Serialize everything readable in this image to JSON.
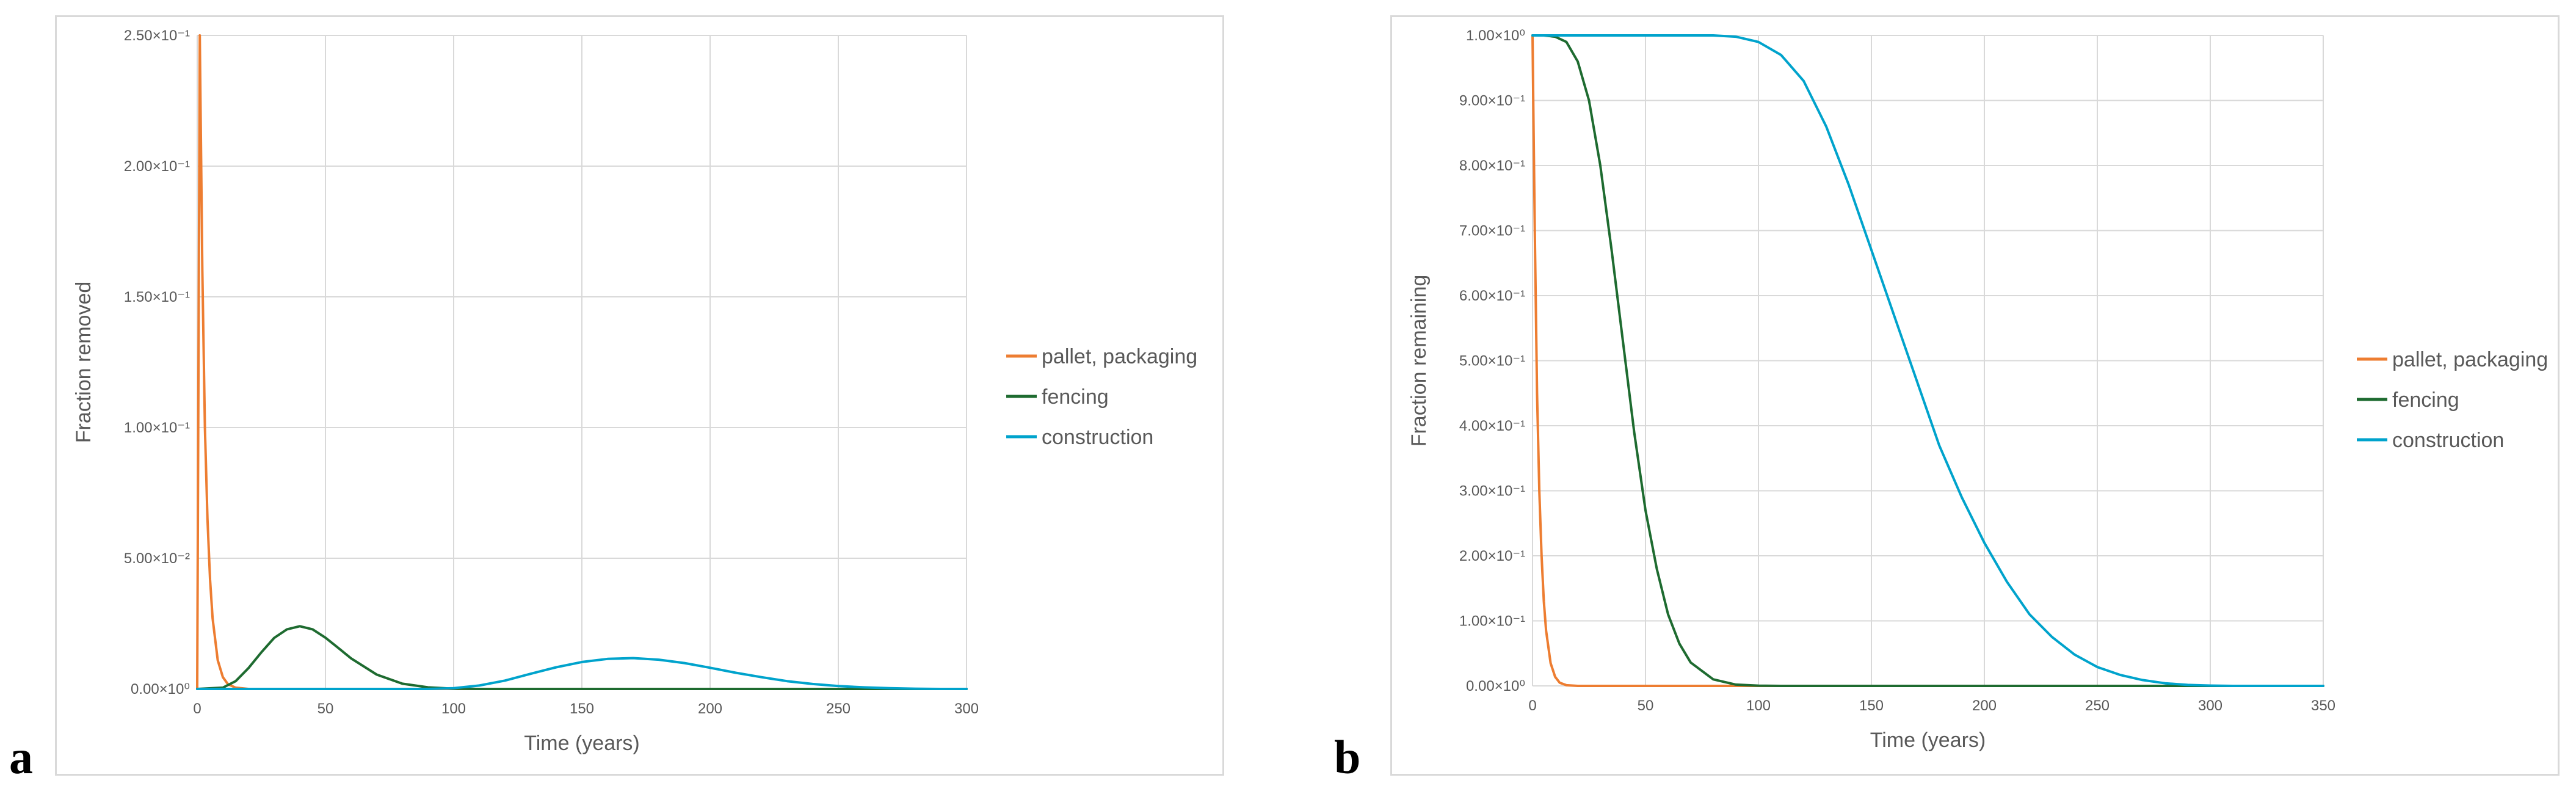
{
  "panels": {
    "a": {
      "letter": "a"
    },
    "b": {
      "letter": "b"
    }
  },
  "chart_data": [
    {
      "type": "line",
      "panel": "a",
      "xlabel": "Time (years)",
      "ylabel": "Fraction removed",
      "xlim": [
        0,
        300
      ],
      "ylim": [
        0,
        0.25
      ],
      "x_ticks": [
        "0",
        "50",
        "100",
        "150",
        "200",
        "250",
        "300"
      ],
      "y_ticks": [
        "0.00×10⁰",
        "5.00×10⁻²",
        "1.00×10⁻¹",
        "1.50×10⁻¹",
        "2.00×10⁻¹",
        "2.50×10⁻¹"
      ],
      "grid": true,
      "legend_position": "right",
      "series": [
        {
          "name": "pallet, packaging",
          "color": "#ED7D31",
          "points": [
            [
              0,
              0
            ],
            [
              1,
              0.25
            ],
            [
              2,
              0.16
            ],
            [
              3,
              0.1
            ],
            [
              4,
              0.065
            ],
            [
              5,
              0.042
            ],
            [
              6,
              0.027
            ],
            [
              8,
              0.011
            ],
            [
              10,
              0.0045
            ],
            [
              12,
              0.0018
            ],
            [
              15,
              0.0005
            ],
            [
              20,
              0
            ],
            [
              300,
              0
            ]
          ]
        },
        {
          "name": "fencing",
          "color": "#1E6B30",
          "points": [
            [
              0,
              0
            ],
            [
              10,
              0.0005
            ],
            [
              15,
              0.003
            ],
            [
              20,
              0.008
            ],
            [
              25,
              0.014
            ],
            [
              30,
              0.0195
            ],
            [
              35,
              0.0228
            ],
            [
              40,
              0.024
            ],
            [
              45,
              0.0228
            ],
            [
              50,
              0.0196
            ],
            [
              55,
              0.0157
            ],
            [
              60,
              0.0117
            ],
            [
              70,
              0.0055
            ],
            [
              80,
              0.002
            ],
            [
              90,
              0.0006
            ],
            [
              100,
              0.0001
            ],
            [
              110,
              0
            ],
            [
              300,
              0
            ]
          ]
        },
        {
          "name": "construction",
          "color": "#00A3CC",
          "points": [
            [
              0,
              0
            ],
            [
              90,
              0
            ],
            [
              100,
              0.0003
            ],
            [
              110,
              0.0013
            ],
            [
              120,
              0.0032
            ],
            [
              130,
              0.0058
            ],
            [
              140,
              0.0083
            ],
            [
              150,
              0.0103
            ],
            [
              160,
              0.0115
            ],
            [
              170,
              0.0118
            ],
            [
              180,
              0.0112
            ],
            [
              190,
              0.0099
            ],
            [
              200,
              0.0081
            ],
            [
              210,
              0.0062
            ],
            [
              220,
              0.0045
            ],
            [
              230,
              0.003
            ],
            [
              240,
              0.0019
            ],
            [
              250,
              0.0011
            ],
            [
              260,
              0.0006
            ],
            [
              270,
              0.0003
            ],
            [
              280,
              0.0001
            ],
            [
              290,
              0
            ],
            [
              300,
              0
            ]
          ]
        }
      ]
    },
    {
      "type": "line",
      "panel": "b",
      "xlabel": "Time (years)",
      "ylabel": "Fraction remaining",
      "xlim": [
        0,
        350
      ],
      "ylim": [
        0,
        1
      ],
      "x_ticks": [
        "0",
        "50",
        "100",
        "150",
        "200",
        "250",
        "300",
        "350"
      ],
      "y_ticks": [
        "0.00×10⁰",
        "1.00×10⁻¹",
        "2.00×10⁻¹",
        "3.00×10⁻¹",
        "4.00×10⁻¹",
        "5.00×10⁻¹",
        "6.00×10⁻¹",
        "7.00×10⁻¹",
        "8.00×10⁻¹",
        "9.00×10⁻¹",
        "1.00×10⁰"
      ],
      "grid": true,
      "legend_position": "right",
      "series": [
        {
          "name": "pallet, packaging",
          "color": "#ED7D31",
          "points": [
            [
              0,
              1
            ],
            [
              0.5,
              0.85
            ],
            [
              1,
              0.7
            ],
            [
              2,
              0.45
            ],
            [
              3,
              0.3
            ],
            [
              4,
              0.2
            ],
            [
              5,
              0.13
            ],
            [
              6,
              0.085
            ],
            [
              8,
              0.035
            ],
            [
              10,
              0.014
            ],
            [
              12,
              0.005
            ],
            [
              15,
              0.001
            ],
            [
              20,
              0
            ],
            [
              350,
              0
            ]
          ]
        },
        {
          "name": "fencing",
          "color": "#1E6B30",
          "points": [
            [
              0,
              1
            ],
            [
              5,
              1
            ],
            [
              10,
              0.998
            ],
            [
              15,
              0.99
            ],
            [
              20,
              0.96
            ],
            [
              25,
              0.9
            ],
            [
              30,
              0.8
            ],
            [
              35,
              0.67
            ],
            [
              40,
              0.53
            ],
            [
              45,
              0.39
            ],
            [
              50,
              0.27
            ],
            [
              55,
              0.18
            ],
            [
              60,
              0.11
            ],
            [
              65,
              0.065
            ],
            [
              70,
              0.036
            ],
            [
              80,
              0.01
            ],
            [
              90,
              0.002
            ],
            [
              100,
              0.0004
            ],
            [
              110,
              0
            ],
            [
              350,
              0
            ]
          ]
        },
        {
          "name": "construction",
          "color": "#00A3CC",
          "points": [
            [
              0,
              1
            ],
            [
              80,
              1
            ],
            [
              90,
              0.998
            ],
            [
              100,
              0.99
            ],
            [
              110,
              0.97
            ],
            [
              120,
              0.93
            ],
            [
              130,
              0.86
            ],
            [
              140,
              0.77
            ],
            [
              150,
              0.67
            ],
            [
              160,
              0.57
            ],
            [
              170,
              0.47
            ],
            [
              180,
              0.37
            ],
            [
              190,
              0.29
            ],
            [
              200,
              0.22
            ],
            [
              210,
              0.16
            ],
            [
              220,
              0.11
            ],
            [
              230,
              0.075
            ],
            [
              240,
              0.048
            ],
            [
              250,
              0.029
            ],
            [
              260,
              0.017
            ],
            [
              270,
              0.009
            ],
            [
              280,
              0.004
            ],
            [
              290,
              0.0015
            ],
            [
              300,
              0.0005
            ],
            [
              310,
              0
            ],
            [
              350,
              0
            ]
          ]
        }
      ]
    }
  ]
}
